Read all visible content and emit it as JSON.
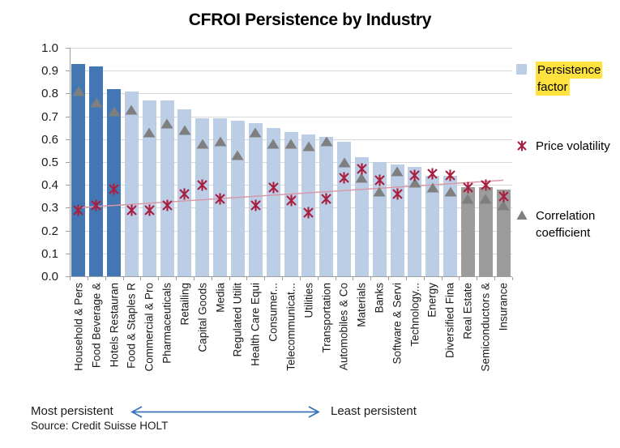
{
  "title": "CFROI Persistence by Industry",
  "colors": {
    "bar_dark_blue": "#4377b4",
    "bar_light_blue": "#bccee6",
    "bar_gray": "#9c9c9c",
    "price_volatility_marker": "#a81e3f",
    "correlation_marker": "#7f7f7f",
    "trendline": "#d898a8",
    "arrow_blue": "#3a72b9",
    "legend_highlight_yellow": "#ffe23d",
    "gridline": "#d8d8d8",
    "axis": "#9f9f9f"
  },
  "legend": {
    "items": [
      {
        "name": "Persistence factor",
        "lines": [
          "Persistence",
          "factor"
        ],
        "marker": "square",
        "highlighted": true
      },
      {
        "name": "Price volatility",
        "lines": [
          "Price",
          "volatility"
        ],
        "marker": "x-star",
        "highlighted": false
      },
      {
        "name": "Correlation coefficient",
        "lines": [
          "Correlation",
          "coefficient"
        ],
        "marker": "triangle",
        "highlighted": false
      }
    ]
  },
  "annotations": {
    "left_label": "Most persistent",
    "right_label": "Least persistent",
    "source": "Source: Credit Suisse HOLT"
  },
  "chart_data": {
    "type": "bar",
    "title": "CFROI Persistence by Industry",
    "categories": [
      "Household & Pers",
      "Food Beverage &",
      "Hotels Restauran",
      "Food & Staples R",
      "Commercial & Pro",
      "Pharmaceuticals",
      "Retailing",
      "Capital Goods",
      "Media",
      "Regulated Utilit",
      "Health Care Equi",
      "Consumer...",
      "Telecommunicat...",
      "Utilities",
      "Transportation",
      "Automobiles & Co",
      "Materials",
      "Banks",
      "Software & Servi",
      "Technology...",
      "Energy",
      "Diversified Fina",
      "Real Estate",
      "Semiconductors &",
      "Insurance"
    ],
    "series": [
      {
        "name": "Persistence factor",
        "type": "bar",
        "values": [
          0.93,
          0.92,
          0.82,
          0.81,
          0.77,
          0.77,
          0.73,
          0.69,
          0.69,
          0.68,
          0.67,
          0.65,
          0.63,
          0.62,
          0.61,
          0.59,
          0.52,
          0.5,
          0.49,
          0.48,
          0.44,
          0.44,
          0.39,
          0.39,
          0.38
        ]
      },
      {
        "name": "Price volatility",
        "type": "scatter",
        "marker": "x-star",
        "values": [
          0.29,
          0.31,
          0.38,
          0.29,
          0.29,
          0.31,
          0.36,
          0.4,
          0.34,
          null,
          0.31,
          0.39,
          0.33,
          0.28,
          0.34,
          0.43,
          0.47,
          0.42,
          0.36,
          0.44,
          0.45,
          0.44,
          0.39,
          0.4,
          0.35
        ]
      },
      {
        "name": "Correlation coefficient",
        "type": "scatter",
        "marker": "triangle",
        "values": [
          0.81,
          0.76,
          0.72,
          0.73,
          0.63,
          0.67,
          0.64,
          0.58,
          0.59,
          0.53,
          0.63,
          0.58,
          0.58,
          0.57,
          0.59,
          0.5,
          0.43,
          0.37,
          0.46,
          0.41,
          0.39,
          0.37,
          0.34,
          0.34,
          0.31
        ]
      }
    ],
    "bar_color_groups": {
      "dark_blue_first_n": 3,
      "gray_last_n": 3
    },
    "trendline": {
      "series": "Price volatility",
      "start_value": 0.3,
      "end_value": 0.42
    },
    "ylim": [
      0.0,
      1.0
    ],
    "ytick_step": 0.1,
    "ytick_labels": [
      "0.0",
      "0.1",
      "0.2",
      "0.3",
      "0.4",
      "0.5",
      "0.6",
      "0.7",
      "0.8",
      "0.9",
      "1.0"
    ],
    "grid": true,
    "legend_position": "right",
    "x_axis_note_left": "Most persistent",
    "x_axis_note_right": "Least persistent"
  }
}
